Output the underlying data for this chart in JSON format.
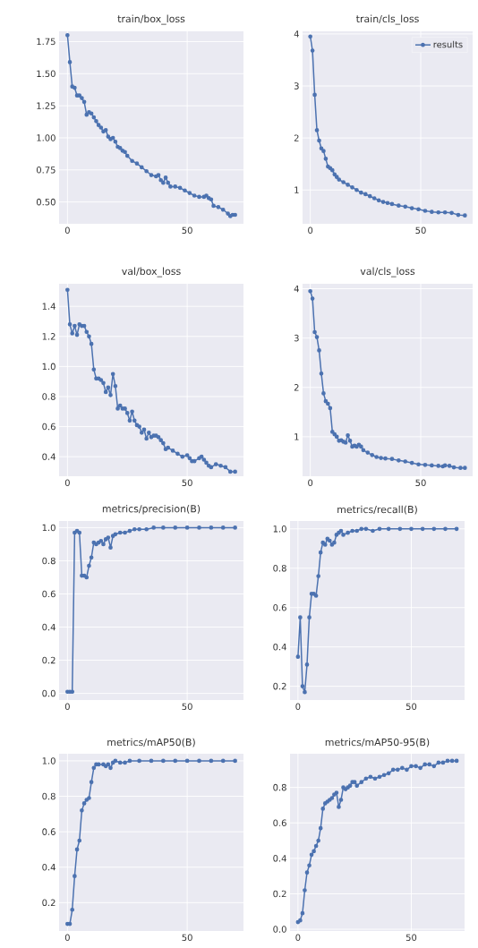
{
  "chart_data": [
    {
      "type": "line",
      "title": "train/box_loss",
      "x": [
        0,
        1,
        2,
        3,
        4,
        5,
        6,
        7,
        8,
        9,
        10,
        11,
        12,
        13,
        14,
        15,
        16,
        17,
        18,
        19,
        20,
        21,
        22,
        23,
        24,
        25,
        27,
        29,
        31,
        33,
        35,
        37,
        38,
        39,
        40,
        41,
        42,
        43,
        45,
        47,
        49,
        51,
        53,
        55,
        57,
        58,
        59,
        60,
        61,
        63,
        65,
        67,
        68,
        69,
        70
      ],
      "series": [
        {
          "color": "#4c72b0",
          "values": [
            1.8,
            1.59,
            1.4,
            1.39,
            1.33,
            1.33,
            1.31,
            1.28,
            1.18,
            1.2,
            1.19,
            1.16,
            1.13,
            1.1,
            1.08,
            1.05,
            1.06,
            1.01,
            0.99,
            1.0,
            0.97,
            0.93,
            0.92,
            0.9,
            0.89,
            0.86,
            0.82,
            0.8,
            0.77,
            0.74,
            0.71,
            0.7,
            0.71,
            0.67,
            0.65,
            0.69,
            0.65,
            0.62,
            0.62,
            0.61,
            0.59,
            0.57,
            0.55,
            0.54,
            0.54,
            0.55,
            0.53,
            0.52,
            0.47,
            0.46,
            0.44,
            0.41,
            0.39,
            0.4,
            0.4
          ]
        }
      ],
      "xlim": [
        -3.5,
        73.5
      ],
      "ylim": [
        0.33,
        1.83
      ],
      "xticks": [
        0,
        50
      ],
      "yticks": [
        {
          "value": 0.5,
          "label": "0.50"
        },
        {
          "value": 0.75,
          "label": "0.75"
        },
        {
          "value": 1.0,
          "label": "1.00"
        },
        {
          "value": 1.25,
          "label": "1.25"
        },
        {
          "value": 1.5,
          "label": "1.50"
        },
        {
          "value": 1.75,
          "label": "1.75"
        }
      ],
      "grid": true,
      "marker": "circle",
      "line_style": "solid"
    },
    {
      "type": "line",
      "title": "train/cls_loss",
      "x": [
        0,
        1,
        2,
        3,
        4,
        5,
        6,
        7,
        8,
        9,
        10,
        11,
        12,
        13,
        15,
        17,
        19,
        21,
        23,
        25,
        27,
        29,
        31,
        33,
        35,
        37,
        40,
        43,
        46,
        49,
        52,
        55,
        58,
        61,
        64,
        67,
        70
      ],
      "series": [
        {
          "name": "results",
          "color": "#4c72b0",
          "values": [
            3.95,
            3.68,
            2.83,
            2.15,
            1.95,
            1.8,
            1.75,
            1.6,
            1.45,
            1.42,
            1.38,
            1.3,
            1.25,
            1.2,
            1.15,
            1.1,
            1.05,
            1.0,
            0.95,
            0.92,
            0.88,
            0.84,
            0.8,
            0.77,
            0.75,
            0.73,
            0.7,
            0.68,
            0.65,
            0.63,
            0.6,
            0.58,
            0.57,
            0.57,
            0.56,
            0.52,
            0.51
          ]
        }
      ],
      "xlim": [
        -3.5,
        73.5
      ],
      "ylim": [
        0.35,
        4.05
      ],
      "xticks": [
        0,
        50
      ],
      "yticks": [
        1,
        2,
        3,
        4
      ],
      "grid": true,
      "marker": "circle",
      "line_style": "solid",
      "legend": "top right"
    },
    {
      "type": "line",
      "title": "val/box_loss",
      "x": [
        0,
        1,
        2,
        3,
        4,
        5,
        6,
        7,
        8,
        9,
        10,
        11,
        12,
        13,
        14,
        15,
        16,
        17,
        18,
        19,
        20,
        21,
        22,
        23,
        24,
        25,
        26,
        27,
        28,
        29,
        30,
        31,
        32,
        33,
        34,
        35,
        36,
        37,
        38,
        39,
        40,
        41,
        42,
        44,
        46,
        48,
        50,
        51,
        52,
        53,
        55,
        56,
        57,
        58,
        59,
        60,
        62,
        64,
        66,
        68,
        70
      ],
      "series": [
        {
          "color": "#4c72b0",
          "values": [
            1.51,
            1.28,
            1.22,
            1.27,
            1.21,
            1.28,
            1.27,
            1.27,
            1.23,
            1.2,
            1.15,
            0.98,
            0.92,
            0.92,
            0.91,
            0.89,
            0.83,
            0.86,
            0.81,
            0.95,
            0.87,
            0.72,
            0.74,
            0.72,
            0.72,
            0.69,
            0.64,
            0.7,
            0.64,
            0.61,
            0.6,
            0.56,
            0.58,
            0.52,
            0.56,
            0.53,
            0.54,
            0.54,
            0.53,
            0.51,
            0.49,
            0.45,
            0.46,
            0.44,
            0.42,
            0.4,
            0.41,
            0.39,
            0.37,
            0.37,
            0.39,
            0.4,
            0.38,
            0.36,
            0.34,
            0.33,
            0.35,
            0.34,
            0.33,
            0.3,
            0.3
          ]
        }
      ],
      "xlim": [
        -3.5,
        73.5
      ],
      "ylim": [
        0.27,
        1.55
      ],
      "xticks": [
        0,
        50
      ],
      "yticks": [
        {
          "value": 0.4,
          "label": "0.4"
        },
        {
          "value": 0.6,
          "label": "0.6"
        },
        {
          "value": 0.8,
          "label": "0.8"
        },
        {
          "value": 1.0,
          "label": "1.0"
        },
        {
          "value": 1.2,
          "label": "1.2"
        },
        {
          "value": 1.4,
          "label": "1.4"
        }
      ],
      "grid": true,
      "marker": "circle",
      "line_style": "solid"
    },
    {
      "type": "line",
      "title": "val/cls_loss",
      "x": [
        0,
        1,
        2,
        3,
        4,
        5,
        6,
        7,
        8,
        9,
        10,
        11,
        12,
        13,
        14,
        15,
        16,
        17,
        18,
        19,
        20,
        21,
        22,
        23,
        24,
        26,
        28,
        30,
        32,
        34,
        37,
        40,
        43,
        46,
        49,
        52,
        55,
        58,
        60,
        61,
        63,
        65,
        68,
        70
      ],
      "series": [
        {
          "color": "#4c72b0",
          "values": [
            3.95,
            3.8,
            3.12,
            3.02,
            2.75,
            2.28,
            1.88,
            1.72,
            1.67,
            1.58,
            1.1,
            1.05,
            1.0,
            0.92,
            0.93,
            0.9,
            0.88,
            1.03,
            0.92,
            0.8,
            0.82,
            0.8,
            0.84,
            0.8,
            0.73,
            0.68,
            0.63,
            0.59,
            0.57,
            0.56,
            0.55,
            0.52,
            0.5,
            0.47,
            0.44,
            0.43,
            0.42,
            0.41,
            0.4,
            0.42,
            0.41,
            0.38,
            0.37,
            0.37
          ]
        }
      ],
      "xlim": [
        -3.5,
        73.5
      ],
      "ylim": [
        0.2,
        4.1
      ],
      "xticks": [
        0,
        50
      ],
      "yticks": [
        1,
        2,
        3,
        4
      ],
      "grid": true,
      "marker": "circle",
      "line_style": "solid"
    },
    {
      "type": "line",
      "title": "metrics/precision(B)",
      "x": [
        0,
        1,
        2,
        3,
        4,
        5,
        6,
        7,
        8,
        9,
        10,
        11,
        12,
        13,
        14,
        15,
        16,
        17,
        18,
        19,
        20,
        22,
        24,
        26,
        28,
        30,
        33,
        36,
        40,
        45,
        50,
        55,
        60,
        65,
        70
      ],
      "series": [
        {
          "color": "#4c72b0",
          "values": [
            0.01,
            0.01,
            0.01,
            0.97,
            0.98,
            0.97,
            0.71,
            0.71,
            0.7,
            0.77,
            0.82,
            0.91,
            0.9,
            0.91,
            0.92,
            0.9,
            0.93,
            0.94,
            0.88,
            0.95,
            0.96,
            0.97,
            0.97,
            0.98,
            0.99,
            0.99,
            0.99,
            1.0,
            1.0,
            1.0,
            1.0,
            1.0,
            1.0,
            1.0,
            1.0
          ]
        }
      ],
      "xlim": [
        -3.5,
        73.5
      ],
      "ylim": [
        -0.04,
        1.04
      ],
      "xticks": [
        0,
        50
      ],
      "yticks": [
        {
          "value": 0.0,
          "label": "0.0"
        },
        {
          "value": 0.2,
          "label": "0.2"
        },
        {
          "value": 0.4,
          "label": "0.4"
        },
        {
          "value": 0.6,
          "label": "0.6"
        },
        {
          "value": 0.8,
          "label": "0.8"
        },
        {
          "value": 1.0,
          "label": "1.0"
        }
      ],
      "grid": true,
      "marker": "circle",
      "line_style": "solid"
    },
    {
      "type": "line",
      "title": "metrics/recall(B)",
      "x": [
        0,
        1,
        2,
        3,
        4,
        5,
        6,
        7,
        8,
        9,
        10,
        11,
        12,
        13,
        14,
        15,
        16,
        17,
        18,
        19,
        20,
        22,
        24,
        26,
        28,
        30,
        33,
        36,
        40,
        45,
        50,
        55,
        60,
        65,
        70
      ],
      "series": [
        {
          "color": "#4c72b0",
          "values": [
            0.35,
            0.55,
            0.2,
            0.17,
            0.31,
            0.55,
            0.67,
            0.67,
            0.66,
            0.76,
            0.88,
            0.93,
            0.92,
            0.95,
            0.94,
            0.92,
            0.93,
            0.97,
            0.98,
            0.99,
            0.97,
            0.98,
            0.99,
            0.99,
            1.0,
            1.0,
            0.99,
            1.0,
            1.0,
            1.0,
            1.0,
            1.0,
            1.0,
            1.0,
            1.0
          ]
        }
      ],
      "xlim": [
        -3.5,
        73.5
      ],
      "ylim": [
        0.13,
        1.04
      ],
      "xticks": [
        0,
        50
      ],
      "yticks": [
        {
          "value": 0.2,
          "label": "0.2"
        },
        {
          "value": 0.4,
          "label": "0.4"
        },
        {
          "value": 0.6,
          "label": "0.6"
        },
        {
          "value": 0.8,
          "label": "0.8"
        },
        {
          "value": 1.0,
          "label": "1.0"
        }
      ],
      "grid": true,
      "marker": "circle",
      "line_style": "solid"
    },
    {
      "type": "line",
      "title": "metrics/mAP50(B)",
      "x": [
        0,
        1,
        2,
        3,
        4,
        5,
        6,
        7,
        8,
        9,
        10,
        11,
        12,
        13,
        15,
        16,
        17,
        18,
        19,
        20,
        22,
        24,
        26,
        30,
        35,
        40,
        45,
        50,
        55,
        60,
        65,
        70
      ],
      "series": [
        {
          "color": "#4c72b0",
          "values": [
            0.08,
            0.08,
            0.16,
            0.35,
            0.5,
            0.55,
            0.72,
            0.76,
            0.78,
            0.79,
            0.88,
            0.96,
            0.98,
            0.98,
            0.98,
            0.97,
            0.98,
            0.96,
            0.99,
            1.0,
            0.99,
            0.99,
            1.0,
            1.0,
            1.0,
            1.0,
            1.0,
            1.0,
            1.0,
            1.0,
            1.0,
            1.0
          ]
        }
      ],
      "xlim": [
        -3.5,
        73.5
      ],
      "ylim": [
        0.04,
        1.04
      ],
      "xticks": [
        0,
        50
      ],
      "yticks": [
        {
          "value": 0.2,
          "label": "0.2"
        },
        {
          "value": 0.4,
          "label": "0.4"
        },
        {
          "value": 0.6,
          "label": "0.6"
        },
        {
          "value": 0.8,
          "label": "0.8"
        },
        {
          "value": 1.0,
          "label": "1.0"
        }
      ],
      "grid": true,
      "marker": "circle",
      "line_style": "solid"
    },
    {
      "type": "line",
      "title": "metrics/mAP50-95(B)",
      "x": [
        0,
        1,
        2,
        3,
        4,
        5,
        6,
        7,
        8,
        9,
        10,
        11,
        12,
        13,
        14,
        15,
        16,
        17,
        18,
        19,
        20,
        21,
        22,
        23,
        24,
        25,
        26,
        28,
        30,
        32,
        34,
        36,
        38,
        40,
        42,
        44,
        46,
        48,
        50,
        52,
        54,
        56,
        58,
        60,
        62,
        64,
        66,
        68,
        70
      ],
      "series": [
        {
          "color": "#4c72b0",
          "values": [
            0.04,
            0.05,
            0.09,
            0.22,
            0.32,
            0.36,
            0.42,
            0.44,
            0.47,
            0.5,
            0.57,
            0.68,
            0.71,
            0.72,
            0.73,
            0.74,
            0.76,
            0.77,
            0.69,
            0.73,
            0.8,
            0.79,
            0.8,
            0.81,
            0.83,
            0.83,
            0.81,
            0.83,
            0.85,
            0.86,
            0.85,
            0.86,
            0.87,
            0.88,
            0.9,
            0.9,
            0.91,
            0.9,
            0.92,
            0.92,
            0.91,
            0.93,
            0.93,
            0.92,
            0.94,
            0.94,
            0.95,
            0.95,
            0.95
          ]
        }
      ],
      "xlim": [
        -3.5,
        73.5
      ],
      "ylim": [
        -0.01,
        0.99
      ],
      "xticks": [
        0,
        50
      ],
      "yticks": [
        {
          "value": 0.0,
          "label": "0.0"
        },
        {
          "value": 0.2,
          "label": "0.2"
        },
        {
          "value": 0.4,
          "label": "0.4"
        },
        {
          "value": 0.6,
          "label": "0.6"
        },
        {
          "value": 0.8,
          "label": "0.8"
        }
      ],
      "grid": true,
      "marker": "circle",
      "line_style": "solid"
    }
  ]
}
